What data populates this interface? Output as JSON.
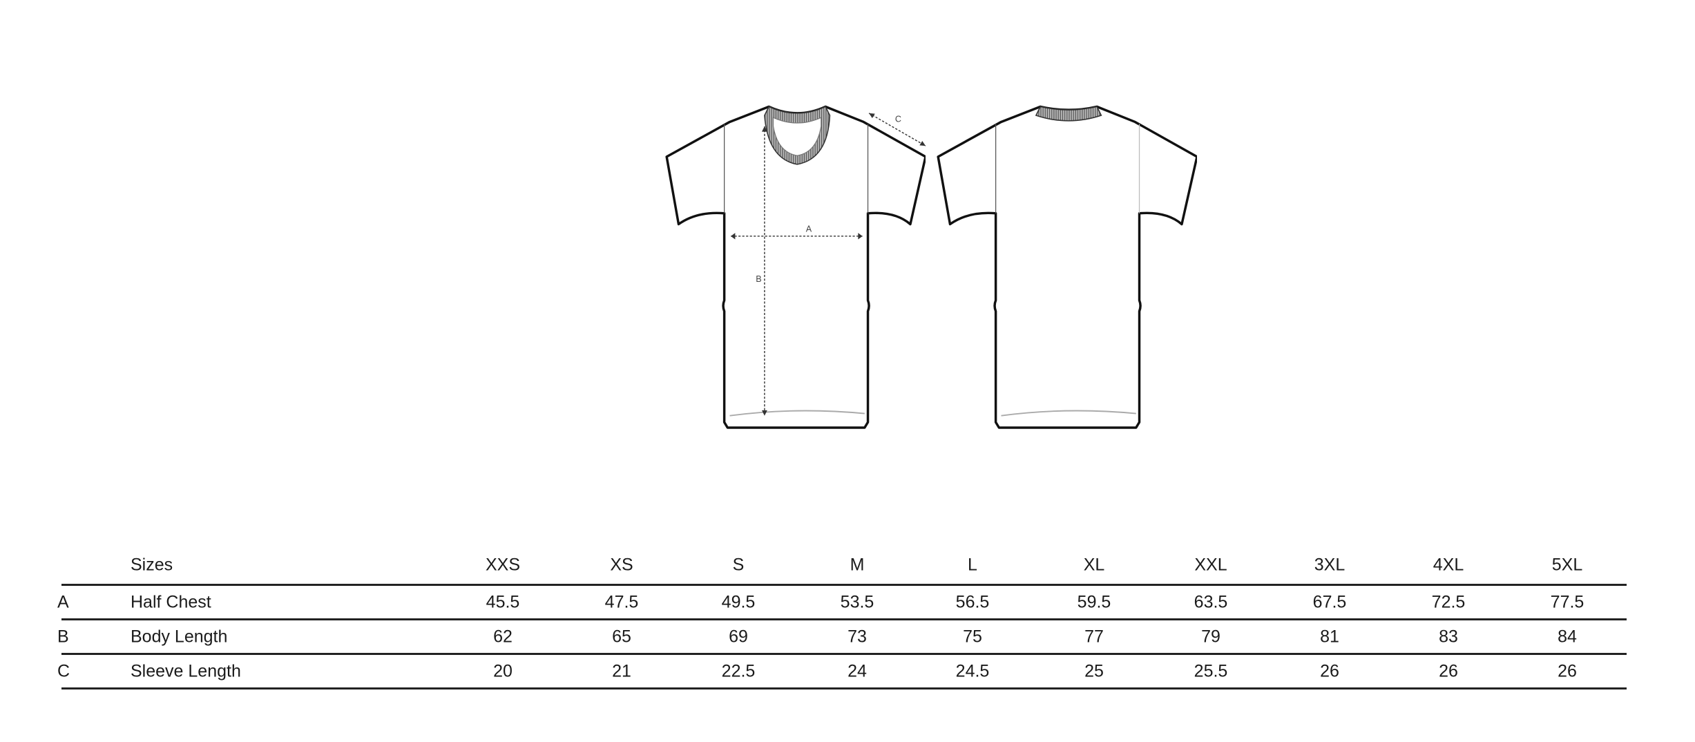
{
  "diagram": {
    "front_labels": {
      "a": "A",
      "b": "B",
      "c": "C"
    }
  },
  "table": {
    "header_label": "Sizes",
    "sizes": [
      "XXS",
      "XS",
      "S",
      "M",
      "L",
      "XL",
      "XXL",
      "3XL",
      "4XL",
      "5XL"
    ],
    "rows": [
      {
        "code": "A",
        "name": "Half Chest",
        "values": [
          "45.5",
          "47.5",
          "49.5",
          "53.5",
          "56.5",
          "59.5",
          "63.5",
          "67.5",
          "72.5",
          "77.5"
        ]
      },
      {
        "code": "B",
        "name": "Body Length",
        "values": [
          "62",
          "65",
          "69",
          "73",
          "75",
          "77",
          "79",
          "81",
          "83",
          "84"
        ]
      },
      {
        "code": "C",
        "name": "Sleeve Length",
        "values": [
          "20",
          "21",
          "22.5",
          "24",
          "24.5",
          "25",
          "25.5",
          "26",
          "26",
          "26"
        ]
      }
    ]
  }
}
